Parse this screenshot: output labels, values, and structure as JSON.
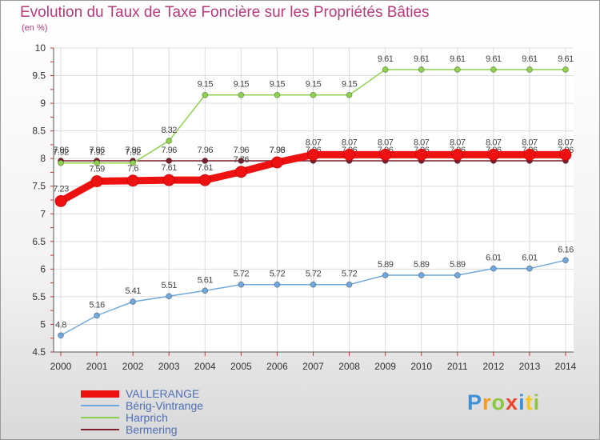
{
  "chart_data": {
    "type": "line",
    "title": "Evolution du Taux de Taxe Foncière sur les Propriétés Bâties",
    "ylabel": "(en %)",
    "xlabel": "",
    "ylim": [
      4.5,
      10
    ],
    "yticks": [
      "4.5",
      "5",
      "5.5",
      "6",
      "6.5",
      "7",
      "7.5",
      "8",
      "8.5",
      "9",
      "9.5",
      "10"
    ],
    "categories": [
      "2000",
      "2001",
      "2002",
      "2003",
      "2004",
      "2005",
      "2006",
      "2007",
      "2008",
      "2009",
      "2010",
      "2011",
      "2012",
      "2013",
      "2014"
    ],
    "series": [
      {
        "name": "Bermering",
        "color": "#7a1f2b",
        "values": [
          7.96,
          7.96,
          7.96,
          7.96,
          7.96,
          7.96,
          7.96,
          7.96,
          7.96,
          7.96,
          7.96,
          7.96,
          7.96,
          7.96,
          7.96
        ],
        "labels": [
          "7.96",
          "7.96",
          "7.96",
          "7.96",
          "7.96",
          "7.96",
          "7.96",
          "7.96",
          "7.96",
          "7.96",
          "7.96",
          "7.96",
          "7.96",
          "7.96",
          "7.96"
        ]
      },
      {
        "name": "Harprich",
        "color": "#8fd14f",
        "values": [
          7.92,
          7.92,
          7.92,
          8.32,
          9.15,
          9.15,
          9.15,
          9.15,
          9.15,
          9.61,
          9.61,
          9.61,
          9.61,
          9.61,
          9.61
        ],
        "labels": [
          "7.92",
          "7.92",
          "7.92",
          "8.32",
          "9.15",
          "9.15",
          "9.15",
          "9.15",
          "9.15",
          "9.61",
          "9.61",
          "9.61",
          "9.61",
          "9.61",
          "9.61"
        ]
      },
      {
        "name": "Bérig-Vintrange",
        "color": "#6fa8dc",
        "values": [
          4.8,
          5.16,
          5.41,
          5.51,
          5.61,
          5.72,
          5.72,
          5.72,
          5.72,
          5.89,
          5.89,
          5.89,
          6.01,
          6.01,
          6.16
        ],
        "labels": [
          "4.8",
          "5.16",
          "5.41",
          "5.51",
          "5.61",
          "5.72",
          "5.72",
          "5.72",
          "5.72",
          "5.89",
          "5.89",
          "5.89",
          "6.01",
          "6.01",
          "6.16"
        ]
      },
      {
        "name": "VALLERANGE",
        "color": "#ee1111",
        "values": [
          7.23,
          7.59,
          7.6,
          7.61,
          7.61,
          7.76,
          7.93,
          8.07,
          8.07,
          8.07,
          8.07,
          8.07,
          8.07,
          8.07,
          8.07
        ],
        "labels": [
          "7.23",
          "7.59",
          "7.6",
          "7.61",
          "7.61",
          "7.76",
          "7.93",
          "8.07",
          "8.07",
          "8.07",
          "8.07",
          "8.07",
          "8.07",
          "8.07",
          "8.07"
        ]
      }
    ],
    "legend": [
      "VALLERANGE",
      "Bérig-Vintrange",
      "Harprich",
      "Bermering"
    ]
  },
  "logo": {
    "letters": [
      "P",
      "r",
      "o",
      "x",
      "i",
      "t",
      "i"
    ]
  }
}
